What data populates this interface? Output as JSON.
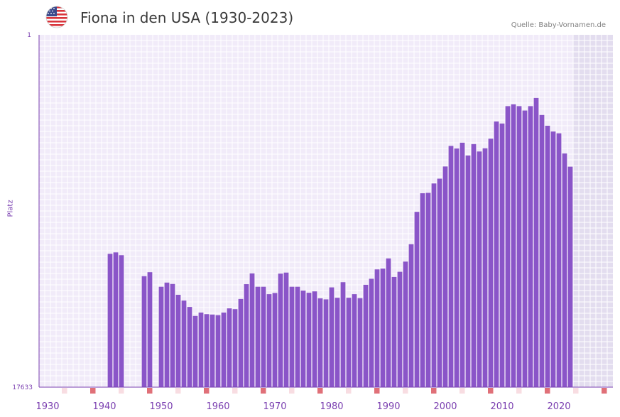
{
  "header": {
    "title": "Fiona in den USA (1930-2023)",
    "source": "Quelle: Baby-Vornamen.de",
    "flag_icon": "usa-flag-icon"
  },
  "colors": {
    "bar": "#8a55c8",
    "plot_bg": "#f1ebf9",
    "grid": "#ffffff",
    "future_band": "#e3ddef",
    "axis": "#7a3fb0",
    "tick_label": "#7a3fb0",
    "marker_strong": "#e07078",
    "marker_light": "#f8dde2"
  },
  "chart_data": {
    "type": "bar",
    "title": "Fiona in den USA (1930-2023)",
    "xlabel": "",
    "ylabel": "Platz",
    "y_axis_inverted": true,
    "ylim": [
      1,
      17633
    ],
    "y_tick_labels": [
      "1",
      "17633"
    ],
    "xlim": [
      1928.5,
      2029.5
    ],
    "x_tick_values": [
      1930,
      1940,
      1950,
      1960,
      1970,
      1980,
      1990,
      2000,
      2010,
      2020
    ],
    "x_tick_labels": [
      "1930",
      "1940",
      "1950",
      "1960",
      "1970",
      "1980",
      "1990",
      "2000",
      "2010",
      "2020"
    ],
    "future_band_from_year": 2022.5,
    "series": [
      {
        "name": "Platz",
        "x": [
          1941,
          1942,
          1943,
          1947,
          1948,
          1950,
          1951,
          1952,
          1953,
          1954,
          1955,
          1956,
          1957,
          1958,
          1959,
          1960,
          1961,
          1962,
          1963,
          1964,
          1965,
          1966,
          1967,
          1968,
          1969,
          1970,
          1971,
          1972,
          1973,
          1974,
          1975,
          1976,
          1977,
          1978,
          1979,
          1980,
          1981,
          1982,
          1983,
          1984,
          1985,
          1986,
          1987,
          1988,
          1989,
          1990,
          1991,
          1992,
          1993,
          1994,
          1995,
          1996,
          1997,
          1998,
          1999,
          2000,
          2001,
          2002,
          2003,
          2004,
          2005,
          2006,
          2007,
          2008,
          2009,
          2010,
          2011,
          2012,
          2013,
          2014,
          2015,
          2016,
          2017,
          2018,
          2019,
          2020,
          2021,
          2022
        ],
        "values": [
          10960,
          10890,
          11030,
          12080,
          11880,
          12610,
          12400,
          12470,
          13010,
          13300,
          13620,
          14070,
          13900,
          13980,
          14000,
          14030,
          13900,
          13690,
          13730,
          13220,
          12480,
          11940,
          12610,
          12610,
          12980,
          12920,
          11950,
          11900,
          12610,
          12610,
          12800,
          12910,
          12840,
          13190,
          13240,
          12640,
          13160,
          12380,
          13160,
          12980,
          13180,
          12510,
          12210,
          11740,
          11700,
          11190,
          12120,
          11860,
          11350,
          10480,
          8860,
          7930,
          7910,
          7440,
          7200,
          6590,
          5560,
          5690,
          5400,
          6040,
          5470,
          5840,
          5680,
          5200,
          4340,
          4440,
          3570,
          3480,
          3570,
          3790,
          3570,
          3160,
          4010,
          4550,
          4840,
          4930,
          5940,
          6600
        ]
      }
    ]
  }
}
